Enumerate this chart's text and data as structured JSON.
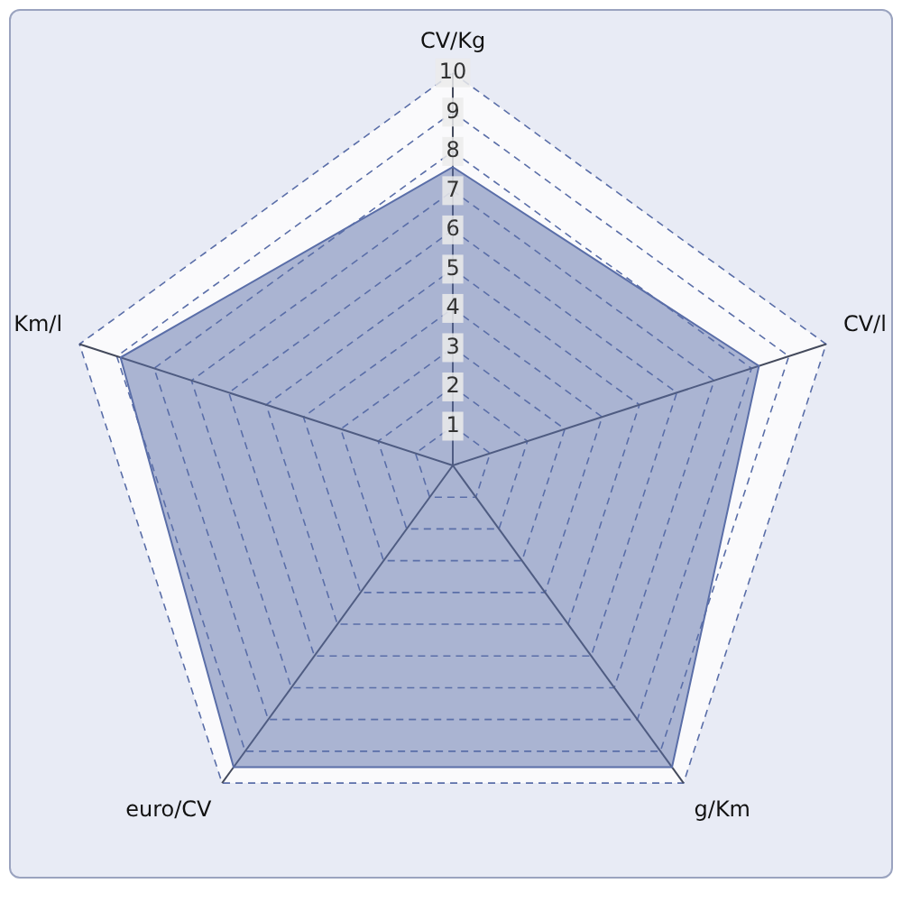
{
  "chart_data": {
    "type": "radar",
    "categories": [
      "CV/Kg",
      "CV/l",
      "g/Km",
      "euro/CV",
      "Km/l"
    ],
    "series": [
      {
        "color": "#5a6ea8",
        "values": [
          7.6,
          8.2,
          9.5,
          9.5,
          8.9
        ]
      }
    ],
    "ylim": [
      0,
      10
    ],
    "yticks": [
      1,
      2,
      3,
      4,
      5,
      6,
      7,
      8,
      9,
      10
    ],
    "grid": true,
    "legend": false
  }
}
